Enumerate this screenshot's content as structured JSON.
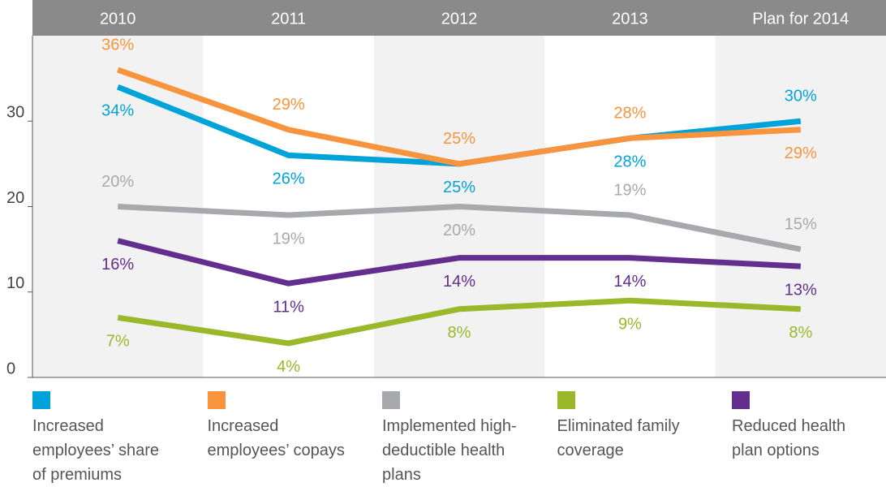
{
  "chart_data": {
    "type": "line",
    "categories": [
      "2010",
      "2011",
      "2012",
      "2013",
      "Plan for 2014"
    ],
    "ylim": [
      0,
      40
    ],
    "yticks": [
      0,
      10,
      20,
      30
    ],
    "series": [
      {
        "name": "Increased employees’ share of premiums",
        "color": "#00a3d9",
        "values": [
          34,
          26,
          25,
          28,
          30
        ],
        "value_labels": [
          "34%",
          "26%",
          "25%",
          "28%",
          "30%"
        ]
      },
      {
        "name": "Increased employees’ copays",
        "color": "#f7943d",
        "values": [
          36,
          29,
          25,
          28,
          29
        ],
        "value_labels": [
          "36%",
          "29%",
          "25%",
          "28%",
          "29%"
        ]
      },
      {
        "name": "Implemented high-deductible health plans",
        "color": "#a7a9ac",
        "values": [
          20,
          19,
          20,
          19,
          15
        ],
        "value_labels": [
          "20%",
          "19%",
          "20%",
          "19%",
          "15%"
        ]
      },
      {
        "name": "Eliminated family coverage",
        "color": "#9bb72a",
        "values": [
          7,
          4,
          8,
          9,
          8
        ],
        "value_labels": [
          "7%",
          "4%",
          "8%",
          "9%",
          "8%"
        ]
      },
      {
        "name": "Reduced health plan options",
        "color": "#622f8e",
        "values": [
          16,
          11,
          14,
          14,
          13
        ],
        "value_labels": [
          "16%",
          "11%",
          "14%",
          "14%",
          "13%"
        ]
      }
    ]
  }
}
